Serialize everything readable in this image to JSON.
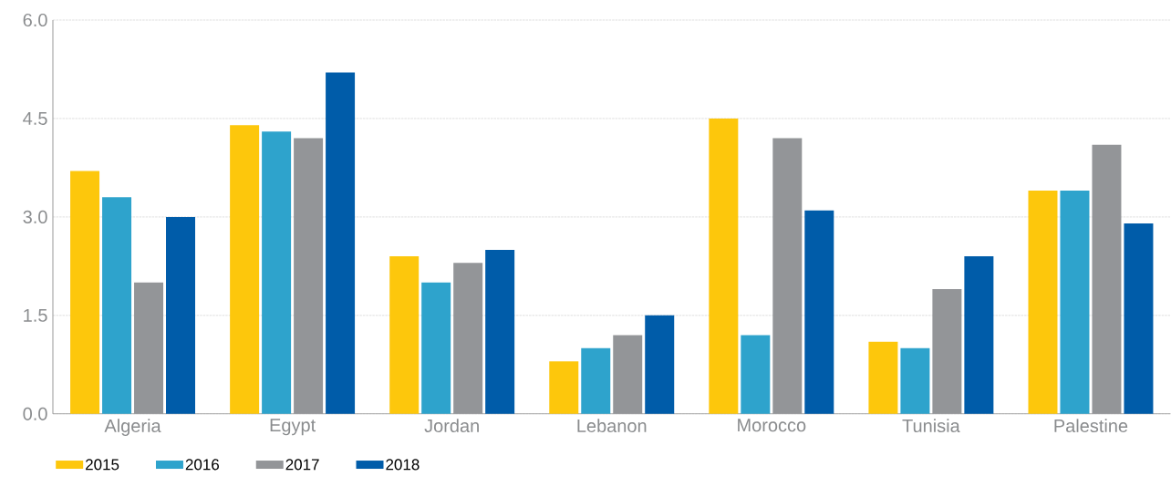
{
  "chart_data": {
    "type": "bar",
    "categories": [
      "Algeria",
      "Egypt",
      "Jordan",
      "Lebanon",
      "Morocco",
      "Tunisia",
      "Palestine"
    ],
    "series": [
      {
        "name": "2015",
        "color": "#fdc70c",
        "values": [
          3.7,
          4.4,
          2.4,
          0.8,
          4.5,
          1.1,
          3.4
        ]
      },
      {
        "name": "2016",
        "color": "#2ea3cc",
        "values": [
          3.3,
          4.3,
          2.0,
          1.0,
          1.2,
          1.0,
          3.4
        ]
      },
      {
        "name": "2017",
        "color": "#939598",
        "values": [
          2.0,
          4.2,
          2.3,
          1.2,
          4.2,
          1.9,
          4.1
        ]
      },
      {
        "name": "2018",
        "color": "#005ca9",
        "values": [
          3.0,
          5.2,
          2.5,
          1.5,
          3.1,
          2.4,
          2.9
        ]
      }
    ],
    "ylim": [
      0,
      6
    ],
    "yticks": [
      {
        "value": 0,
        "label": "0.0"
      },
      {
        "value": 1.5,
        "label": "1.5"
      },
      {
        "value": 3,
        "label": "3.0"
      },
      {
        "value": 4.5,
        "label": "4.5"
      },
      {
        "value": 6,
        "label": "6.0"
      }
    ],
    "grid": "y",
    "legend": "bottom"
  }
}
